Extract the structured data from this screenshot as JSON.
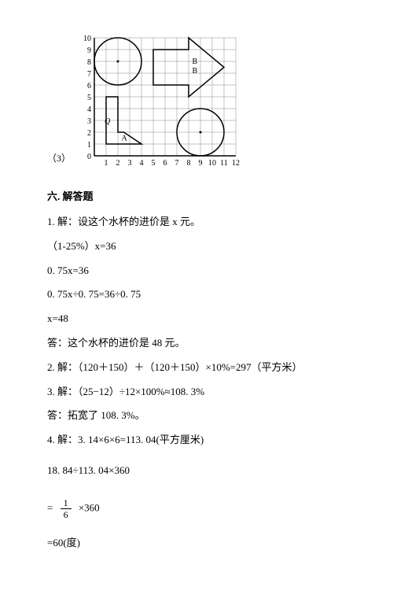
{
  "graph": {
    "qnum": "（3）",
    "xmax": 12,
    "ymax": 10,
    "cell": 15,
    "stroke": "#000000",
    "gridColor": "#888888",
    "labelA": "A",
    "labelB1": "B",
    "labelB2": "B",
    "labelQ": "Q"
  },
  "sectionTitle": "六. 解答题",
  "p1": "1. 解：设这个水杯的进价是 x 元。",
  "p2": "（1-25%）x=36",
  "p3": "0. 75x=36",
  "p4": "0. 75x÷0. 75=36÷0. 75",
  "p5": "x=48",
  "p6": "答：这个水杯的进价是 48 元。",
  "p7": "2. 解：（120＋150）＋（120＋150）×10%=297（平方米）",
  "p8": "3. 解：（25−12）÷12×100%≈108. 3%",
  "p9": "答：拓宽了 108. 3%。",
  "p10": "4. 解：3. 14×6×6=113. 04(平方厘米)",
  "p11": "18. 84÷113. 04×360",
  "fracEq": {
    "prefix": "= ",
    "num": "1",
    "den": "6",
    "suffix": " ×360"
  },
  "p12": "=60(度)"
}
